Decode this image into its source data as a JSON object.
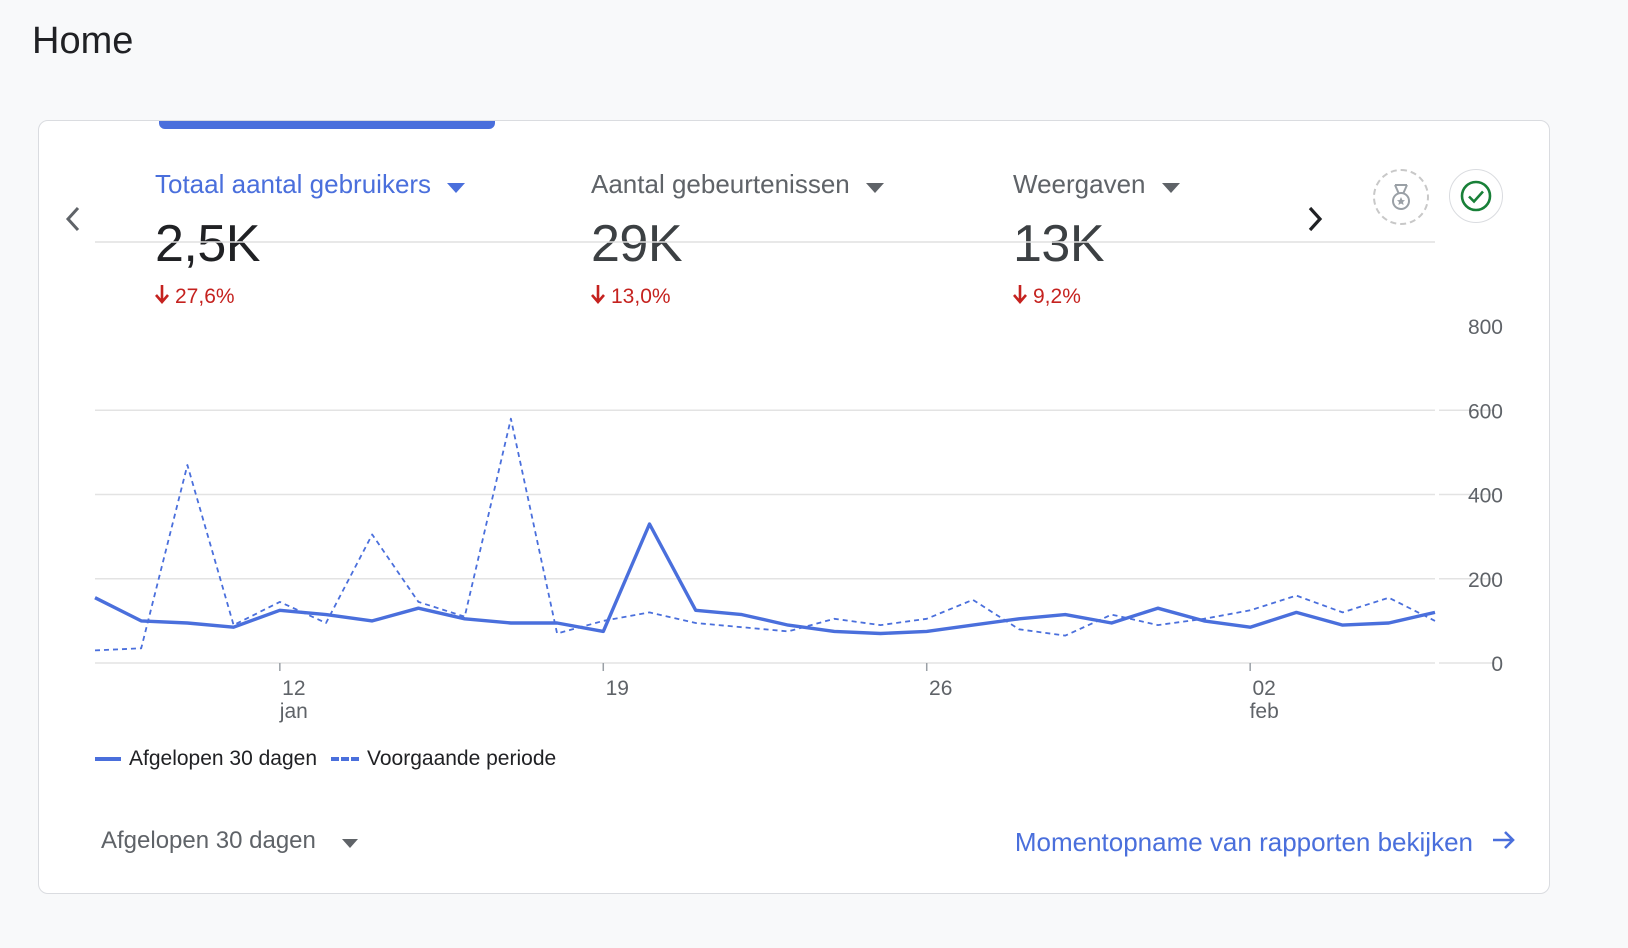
{
  "page": {
    "title": "Home"
  },
  "metrics": [
    {
      "label": "Totaal aantal gebruikers",
      "value": "2,5K",
      "change": "27,6%",
      "active": true
    },
    {
      "label": "Aantal gebeurtenissen",
      "value": "29K",
      "change": "13,0%",
      "active": false
    },
    {
      "label": "Weergaven",
      "value": "13K",
      "change": "9,2%",
      "active": false
    }
  ],
  "icons": {
    "prev": "chevron-left-icon",
    "next": "chevron-right-icon",
    "medal": "medal-icon",
    "check": "check-circle-icon"
  },
  "colors": {
    "accent": "#4a6fdc",
    "negative": "#c5221f",
    "check": "#188038"
  },
  "chart_data": {
    "type": "line",
    "x_ticks": [
      {
        "label": "12",
        "sublabel": "jan",
        "index": 4
      },
      {
        "label": "19",
        "sublabel": "",
        "index": 11
      },
      {
        "label": "26",
        "sublabel": "",
        "index": 18
      },
      {
        "label": "02",
        "sublabel": "feb",
        "index": 25
      }
    ],
    "ylim": [
      0,
      800
    ],
    "y_ticks": [
      "0",
      "200",
      "400",
      "600",
      "800"
    ],
    "grid": true,
    "legend_position": "bottom-left",
    "series": [
      {
        "name": "Afgelopen 30 dagen",
        "style": "solid",
        "values": [
          155,
          100,
          95,
          85,
          125,
          115,
          100,
          130,
          105,
          95,
          95,
          75,
          330,
          125,
          115,
          90,
          75,
          70,
          75,
          90,
          105,
          115,
          95,
          130,
          100,
          85,
          120,
          90,
          95,
          120
        ]
      },
      {
        "name": "Voorgaande periode",
        "style": "dashed",
        "values": [
          30,
          35,
          470,
          90,
          145,
          95,
          305,
          145,
          110,
          580,
          70,
          100,
          120,
          95,
          85,
          75,
          105,
          90,
          105,
          150,
          80,
          65,
          115,
          90,
          105,
          125,
          160,
          120,
          155,
          100
        ]
      }
    ]
  },
  "legend": {
    "current": "Afgelopen 30 dagen",
    "previous": "Voorgaande periode"
  },
  "footer": {
    "date_range": "Afgelopen 30 dagen",
    "report_link": "Momentopname van rapporten bekijken"
  }
}
